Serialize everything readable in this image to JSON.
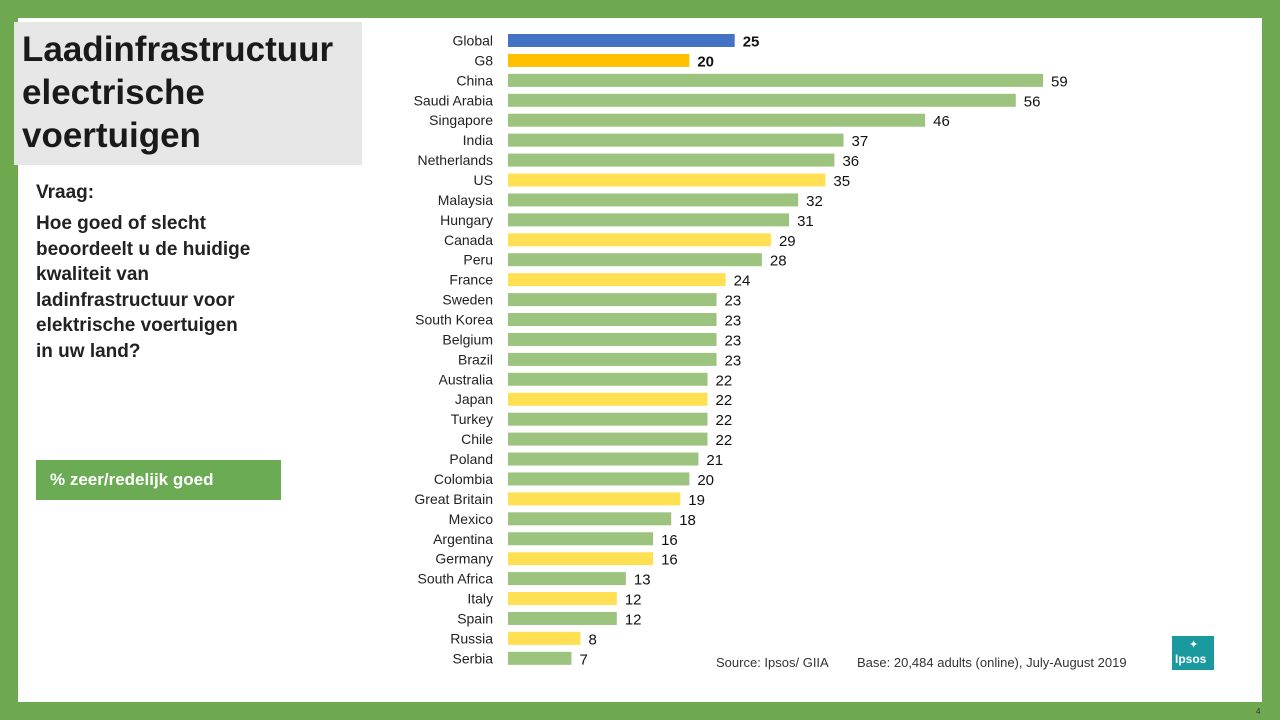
{
  "slide": {
    "title": "Laadinfrastructuur\nelectrische\nvoertuigen",
    "question_label": "Vraag:",
    "question_text": "Hoe goed of slecht\nbeoordeelt u de huidige\nkwaliteit van\nladinfrastructuur voor\nelektrische voertuigen\nin uw land?",
    "metric_label": "% zeer/redelijk goed",
    "source": "Source: Ipsos/ GIIA",
    "base": "Base: 20,484 adults (online), July-August 2019",
    "logo_text": "Ipsos",
    "page_number": "4"
  },
  "chart_data": {
    "type": "bar",
    "orientation": "horizontal",
    "title": "",
    "xlabel": "",
    "ylabel": "",
    "xlim": [
      0,
      59
    ],
    "grid": false,
    "legend": "none",
    "categories": [
      "Global",
      "G8",
      "China",
      "Saudi Arabia",
      "Singapore",
      "India",
      "Netherlands",
      "US",
      "Malaysia",
      "Hungary",
      "Canada",
      "Peru",
      "France",
      "Sweden",
      "South Korea",
      "Belgium",
      "Brazil",
      "Australia",
      "Japan",
      "Turkey",
      "Chile",
      "Poland",
      "Colombia",
      "Great Britain",
      "Mexico",
      "Argentina",
      "Germany",
      "South Africa",
      "Italy",
      "Spain",
      "Russia",
      "Serbia"
    ],
    "values": [
      25,
      20,
      59,
      56,
      46,
      37,
      36,
      35,
      32,
      31,
      29,
      28,
      24,
      23,
      23,
      23,
      23,
      22,
      22,
      22,
      22,
      21,
      20,
      19,
      18,
      16,
      16,
      13,
      12,
      12,
      8,
      7
    ],
    "groups": [
      "global",
      "g8",
      "other",
      "other",
      "other",
      "other",
      "other",
      "g8",
      "other",
      "other",
      "g8",
      "other",
      "g8",
      "other",
      "other",
      "other",
      "other",
      "other",
      "g8",
      "other",
      "other",
      "other",
      "other",
      "g8",
      "other",
      "other",
      "g8",
      "other",
      "g8",
      "other",
      "g8",
      "other"
    ],
    "colors": {
      "global": "#4472c4",
      "g8_aggregate": "#ffc000",
      "g8": "#ffe053",
      "other": "#9cc47e"
    },
    "bold_labels": [
      "Global",
      "G8"
    ]
  }
}
